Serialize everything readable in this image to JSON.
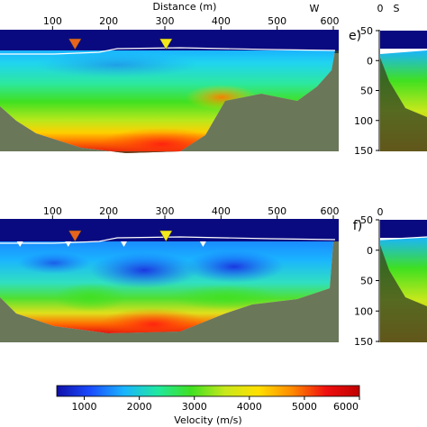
{
  "chart_data": {
    "type": "heatmap",
    "top_axis": {
      "xlabel": "Distance (m)",
      "x_ticks": [
        "100",
        "200",
        "300",
        "400",
        "500",
        "600"
      ],
      "x_range": [
        0,
        600
      ],
      "direction_label": "W"
    },
    "panels": [
      {
        "id": "d",
        "x_ticks": [
          "100",
          "200",
          "300",
          "400",
          "500",
          "600"
        ],
        "markers": [
          {
            "x": 140,
            "color": "#e8641c",
            "kind": "large"
          },
          {
            "x": 302,
            "color": "#f2e81c",
            "kind": "large"
          }
        ]
      },
      {
        "id": "f",
        "x_ticks": [
          "100",
          "200",
          "300",
          "400",
          "500",
          "600"
        ],
        "markers": [
          {
            "x": 140,
            "color": "#e8641c",
            "kind": "large"
          },
          {
            "x": 302,
            "color": "#f2e81c",
            "kind": "large"
          },
          {
            "x": 42,
            "color": "#ffffff",
            "kind": "small"
          },
          {
            "x": 128,
            "color": "#ffffff",
            "kind": "small"
          },
          {
            "x": 227,
            "color": "#ffffff",
            "kind": "small"
          },
          {
            "x": 368,
            "color": "#ffffff",
            "kind": "small"
          }
        ]
      }
    ],
    "side_panels": [
      {
        "label": "e)",
        "top_labels": [
          "0",
          "S"
        ],
        "y_ticks": [
          "-50",
          "0",
          "50",
          "100",
          "150"
        ],
        "y_range": [
          -50,
          150
        ]
      },
      {
        "label": "f)",
        "top_labels": [
          "0"
        ],
        "y_ticks": [
          "-50",
          "0",
          "50",
          "100",
          "150"
        ],
        "y_range": [
          -50,
          150
        ]
      }
    ],
    "colorbar": {
      "label": "Velocity (m/s)",
      "ticks": [
        "1000",
        "2000",
        "3000",
        "4000",
        "5000",
        "6000"
      ],
      "range": [
        500,
        6000
      ],
      "colormap": [
        "#1010a8",
        "#1a4cff",
        "#1ab4ff",
        "#20e8a0",
        "#40e020",
        "#c8e81c",
        "#ffe000",
        "#ff8a00",
        "#f01010",
        "#c00000"
      ]
    }
  }
}
